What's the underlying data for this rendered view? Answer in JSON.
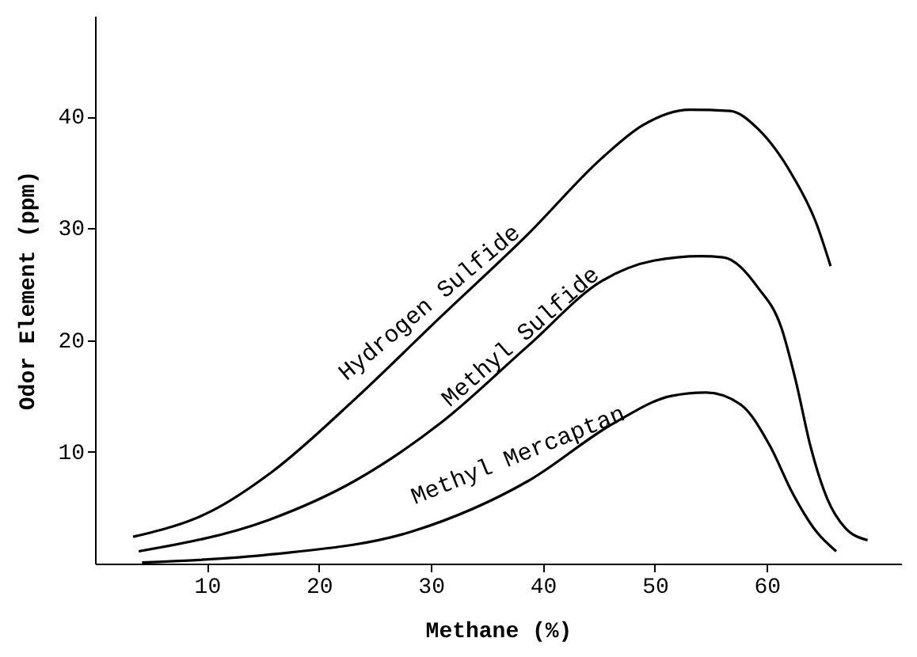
{
  "chart_data": {
    "type": "line",
    "xlabel": "Methane (%)",
    "ylabel": "Odor Element (ppm)",
    "xlim": [
      0,
      72
    ],
    "ylim": [
      0,
      49
    ],
    "xticks": [
      10,
      20,
      30,
      40,
      50,
      60
    ],
    "yticks": [
      10,
      20,
      30,
      40
    ],
    "grid": false,
    "marker": "none",
    "line_style": "solid",
    "series": [
      {
        "name": "Hydrogen Sulfide",
        "color": "#000000",
        "x": [
          3.4,
          10.4,
          15.8,
          23.2,
          30.9,
          38.7,
          45.3,
          48.9,
          53.1,
          56.7,
          59.2,
          62.3,
          64.4,
          65.7
        ],
        "values": [
          2.4,
          4.7,
          8.2,
          14.7,
          22.1,
          29.5,
          36.3,
          39.2,
          40.6,
          40.5,
          38.9,
          34.7,
          30.5,
          26.6
        ]
      },
      {
        "name": "Methyl Sulfide",
        "color": "#000000",
        "x": [
          3.9,
          15.5,
          23.2,
          30.9,
          38.7,
          45.3,
          49.9,
          54.1,
          56.1,
          59.2,
          61.3,
          62.6,
          63.9,
          65.4,
          67.0,
          69.0
        ],
        "values": [
          1.1,
          3.9,
          7.4,
          12.6,
          19.5,
          25.3,
          27.1,
          27.5,
          27.4,
          24.7,
          21.1,
          16.3,
          10.5,
          5.8,
          3.2,
          2.1
        ]
      },
      {
        "name": "Methyl Mercaptan",
        "color": "#000000",
        "x": [
          4.2,
          15.5,
          28.4,
          38.7,
          46.4,
          51.5,
          54.6,
          57.7,
          60.3,
          62.3,
          64.4,
          66.2
        ],
        "values": [
          0.1,
          0.8,
          2.9,
          7.4,
          12.6,
          15.0,
          15.3,
          14.2,
          10.5,
          6.3,
          2.9,
          1.1
        ]
      }
    ]
  }
}
